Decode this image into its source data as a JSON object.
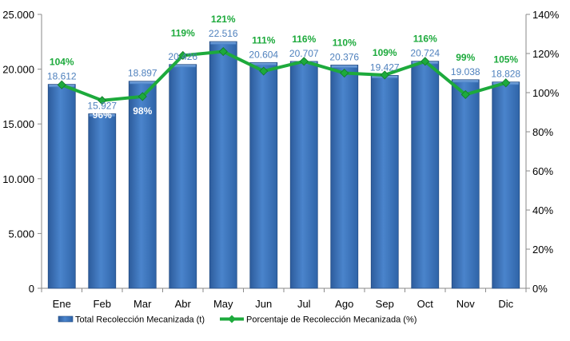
{
  "chart_data": {
    "type": "bar",
    "categories": [
      "Ene",
      "Feb",
      "Mar",
      "Abr",
      "May",
      "Jun",
      "Jul",
      "Ago",
      "Sep",
      "Oct",
      "Nov",
      "Dic"
    ],
    "series": [
      {
        "name": "Total Recolección Mecanizada (t)",
        "type": "bar",
        "axis": "left",
        "color": "#3F77BD",
        "values": [
          18612,
          15927,
          18897,
          20426,
          22516,
          20604,
          20707,
          20376,
          19427,
          20724,
          19038,
          18828
        ],
        "labels": [
          "18.612",
          "15.927",
          "18.897",
          "20.426",
          "22.516",
          "20.604",
          "20.707",
          "20.376",
          "19.427",
          "20.724",
          "19.038",
          "18.828"
        ]
      },
      {
        "name": "Porcentaje de Recolección Mecanizada (%)",
        "type": "line",
        "axis": "right",
        "color": "#1DAA3C",
        "values": [
          104,
          96,
          98,
          119,
          121,
          111,
          116,
          110,
          109,
          116,
          99,
          105
        ],
        "labels": [
          "104%",
          "96%",
          "98%",
          "119%",
          "121%",
          "111%",
          "116%",
          "110%",
          "109%",
          "116%",
          "99%",
          "105%"
        ]
      }
    ],
    "y_left": {
      "range": [
        0,
        25000
      ],
      "ticks": [
        0,
        5000,
        10000,
        15000,
        20000,
        25000
      ],
      "tick_labels": [
        "0",
        "5.000",
        "10.000",
        "15.000",
        "20.000",
        "25.000"
      ]
    },
    "y_right": {
      "range": [
        0,
        140
      ],
      "ticks": [
        0,
        20,
        40,
        60,
        80,
        100,
        120,
        140
      ],
      "tick_labels": [
        "0%",
        "20%",
        "40%",
        "60%",
        "80%",
        "100%",
        "120%",
        "140%"
      ]
    },
    "grid": false,
    "legend_position": "bottom",
    "title": "",
    "xlabel": "",
    "ylabel": ""
  }
}
